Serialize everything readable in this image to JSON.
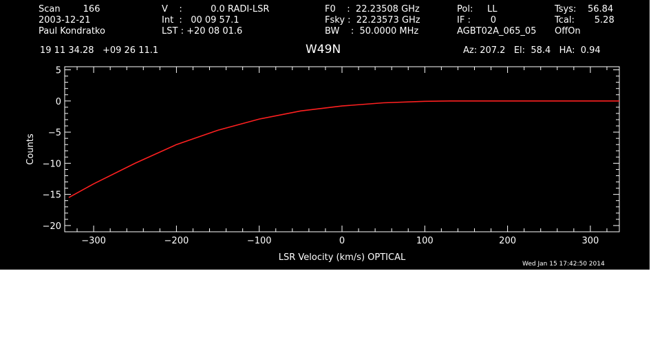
{
  "header": {
    "col1": [
      "Scan        166",
      "2003-12-21",
      "Paul Kondratko"
    ],
    "col2": [
      "V    :          0.0 RADI-LSR",
      "Int  :   00 09 57.1",
      "LST : +20 08 01.6"
    ],
    "col3": [
      "F0    :  22.23508 GHz",
      "Fsky :  22.23573 GHz",
      "BW    :  50.0000 MHz"
    ],
    "col4": [
      "Pol:     LL",
      "IF :       0",
      "AGBT02A_065_05"
    ],
    "col5": [
      "Tsys:    56.84",
      "Tcal:       5.28",
      "OffOn"
    ],
    "coords": "19 11 34.28   +09 26 11.1",
    "source": "W49N",
    "azelha": "Az: 207.2   El:  58.4   HA:  0.94",
    "timestamp": "Wed Jan 15 17:42:50 2014"
  },
  "colors": {
    "background": "#000000",
    "axes": "#ffffff",
    "series": "#ff2020"
  },
  "chart_data": {
    "type": "line",
    "title": "W49N",
    "xlabel": "LSR Velocity (km/s) OPTICAL",
    "ylabel": "Counts",
    "xlim": [
      -335,
      335
    ],
    "ylim": [
      -21,
      5.5
    ],
    "xticks": [
      -300,
      -200,
      -100,
      0,
      100,
      200,
      300
    ],
    "xtick_labels": [
      "−300",
      "−200",
      "−100",
      "0",
      "100",
      "200",
      "300"
    ],
    "yticks": [
      5,
      0,
      -5,
      -10,
      -15,
      -20
    ],
    "ytick_labels": [
      "5",
      "0",
      "−5",
      "−10",
      "−15",
      "−20"
    ],
    "grid": false,
    "series": [
      {
        "x": [
          -330,
          -300,
          -250,
          -200,
          -150,
          -100,
          -50,
          0,
          50,
          100,
          130,
          150,
          200,
          250,
          300,
          335
        ],
        "y": [
          -15.5,
          -13.3,
          -10.0,
          -7.0,
          -4.7,
          -2.9,
          -1.6,
          -0.8,
          -0.3,
          -0.05,
          0.0,
          0.0,
          0.0,
          0.0,
          0.0,
          0.0
        ]
      }
    ]
  }
}
